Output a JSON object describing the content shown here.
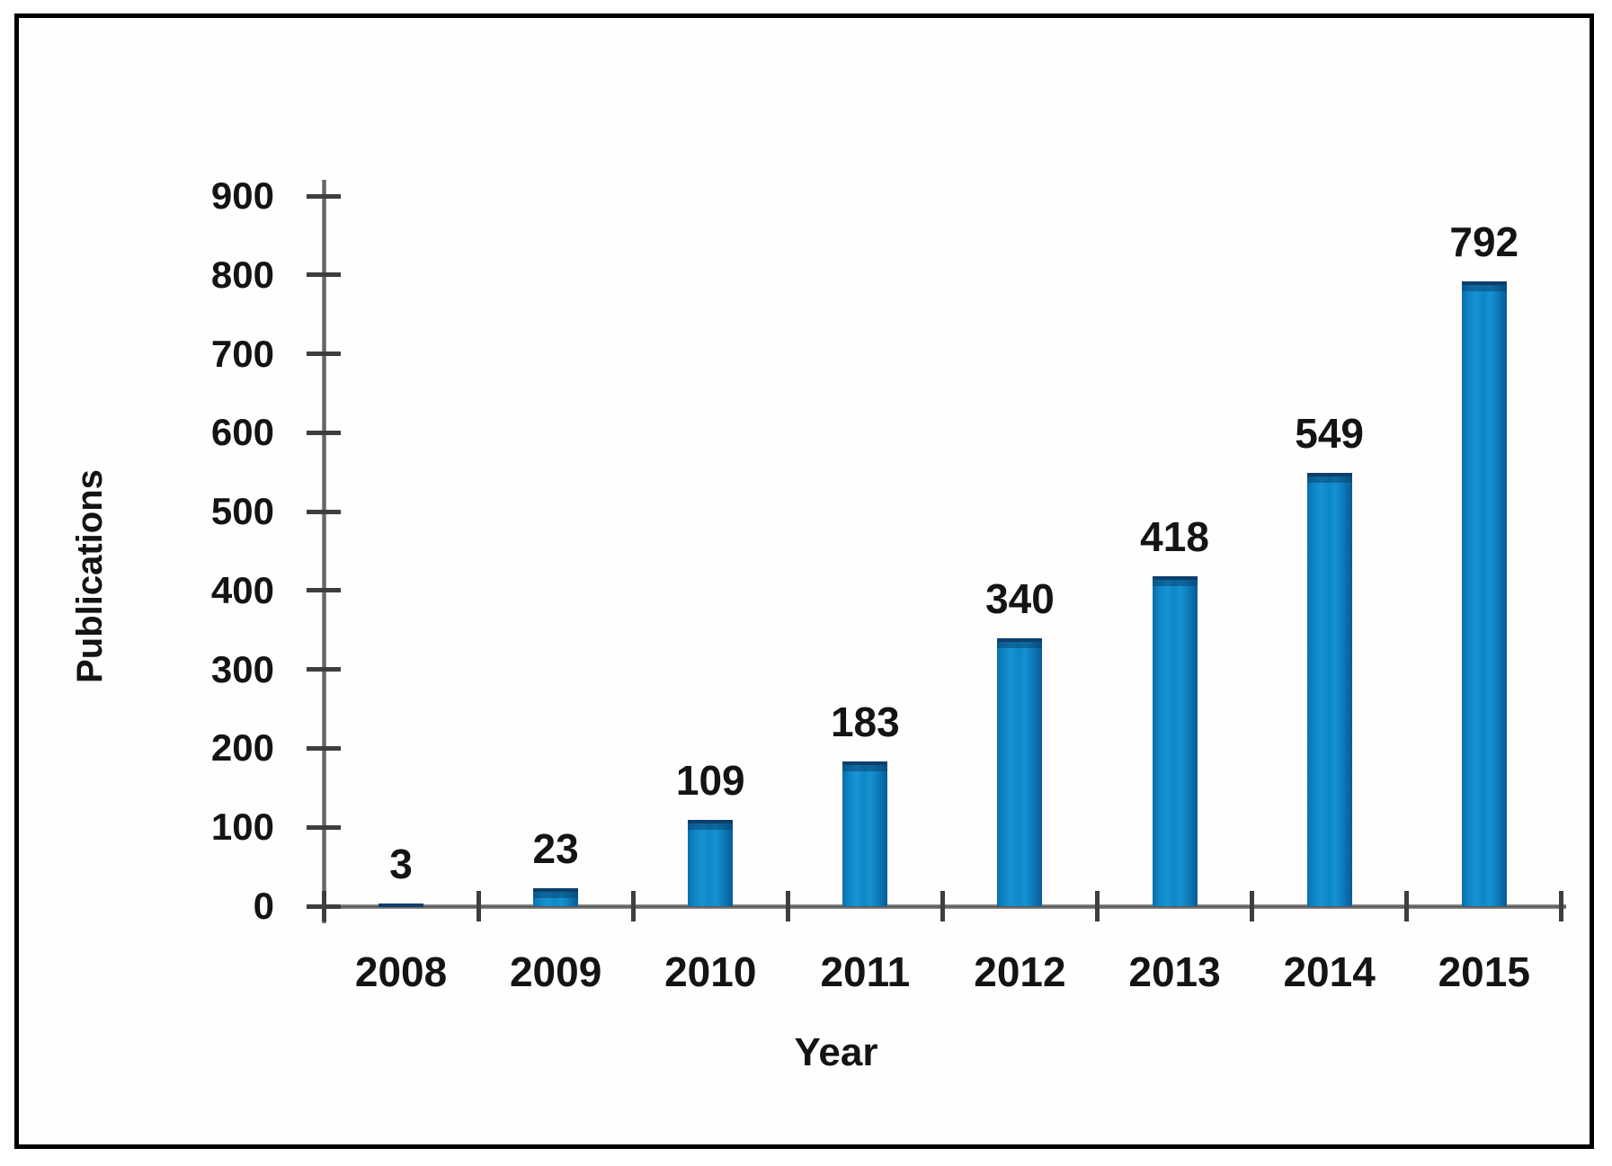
{
  "figure": {
    "background_color": "#ffffff",
    "frame_border_color": "#000000"
  },
  "chart_data": {
    "type": "bar",
    "title": "",
    "xlabel": "Year",
    "ylabel": "Publications",
    "categories": [
      "2008",
      "2009",
      "2010",
      "2011",
      "2012",
      "2013",
      "2014",
      "2015"
    ],
    "values": [
      3,
      23,
      109,
      183,
      340,
      418,
      549,
      792
    ],
    "data_labels": [
      "3",
      "23",
      "109",
      "183",
      "340",
      "418",
      "549",
      "792"
    ],
    "ylim": [
      0,
      900
    ],
    "yticks": [
      0,
      100,
      200,
      300,
      400,
      500,
      600,
      700,
      800,
      900
    ],
    "grid": false,
    "legend": null,
    "bar_color": "#0f86c7",
    "bar_edge_color": "#0a5e93",
    "bar_top_edge_color": "#0c3f6b",
    "axis_color": "#6f6f6f",
    "tick_color": "#3e3e3e",
    "text_color": "#141414"
  }
}
